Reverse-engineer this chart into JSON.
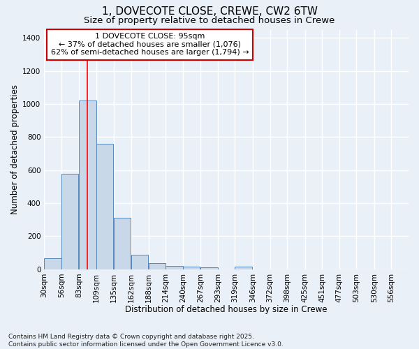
{
  "title": "1, DOVECOTE CLOSE, CREWE, CW2 6TW",
  "subtitle": "Size of property relative to detached houses in Crewe",
  "xlabel": "Distribution of detached houses by size in Crewe",
  "ylabel": "Number of detached properties",
  "bar_color": "#c8d8e8",
  "bar_edge_color": "#5588bb",
  "background_color": "#eaf0f8",
  "grid_color": "#ffffff",
  "redline_x": 95,
  "annotation_text": "1 DOVECOTE CLOSE: 95sqm\n← 37% of detached houses are smaller (1,076)\n62% of semi-detached houses are larger (1,794) →",
  "annotation_box_color": "#ffffff",
  "annotation_box_edge": "#cc0000",
  "categories": [
    "30sqm",
    "56sqm",
    "83sqm",
    "109sqm",
    "135sqm",
    "162sqm",
    "188sqm",
    "214sqm",
    "240sqm",
    "267sqm",
    "293sqm",
    "319sqm",
    "346sqm",
    "372sqm",
    "398sqm",
    "425sqm",
    "451sqm",
    "477sqm",
    "503sqm",
    "530sqm",
    "556sqm"
  ],
  "bin_starts": [
    30,
    56,
    83,
    109,
    135,
    162,
    188,
    214,
    240,
    267,
    293,
    319,
    346,
    372,
    398,
    425,
    451,
    477,
    503,
    530,
    556
  ],
  "bin_width": 26,
  "values": [
    65,
    580,
    1020,
    760,
    310,
    88,
    38,
    22,
    18,
    12,
    0,
    15,
    0,
    0,
    0,
    0,
    0,
    0,
    0,
    0,
    0
  ],
  "ylim": [
    0,
    1450
  ],
  "yticks": [
    0,
    200,
    400,
    600,
    800,
    1000,
    1200,
    1400
  ],
  "xlim_left": 30,
  "xlim_right": 582,
  "footnote": "Contains HM Land Registry data © Crown copyright and database right 2025.\nContains public sector information licensed under the Open Government Licence v3.0.",
  "title_fontsize": 11,
  "subtitle_fontsize": 9.5,
  "xlabel_fontsize": 8.5,
  "ylabel_fontsize": 8.5,
  "tick_fontsize": 7.5,
  "annotation_fontsize": 8,
  "footnote_fontsize": 6.5
}
